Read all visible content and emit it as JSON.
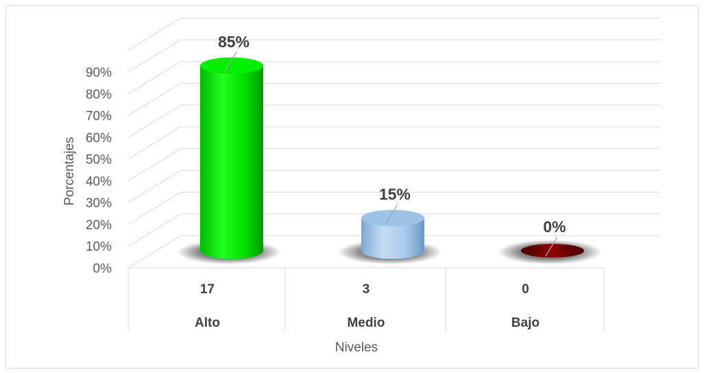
{
  "chart_data": {
    "type": "bar",
    "style": "3d-cylinder",
    "categories": [
      "Alto",
      "Medio",
      "Bajo"
    ],
    "counts": [
      "17",
      "3",
      "0"
    ],
    "values": [
      85,
      15,
      0
    ],
    "data_labels": [
      "85%",
      "15%",
      "0%"
    ],
    "xlabel": "Niveles",
    "ylabel": "Porcentajes",
    "ylim": [
      0,
      90
    ],
    "yticks": [
      "0%",
      "10%",
      "20%",
      "30%",
      "40%",
      "50%",
      "60%",
      "70%",
      "80%",
      "90%"
    ],
    "grid": true,
    "legend": "none",
    "colors": [
      "#00ee00",
      "#9dc3e6",
      "#7a0000"
    ]
  }
}
